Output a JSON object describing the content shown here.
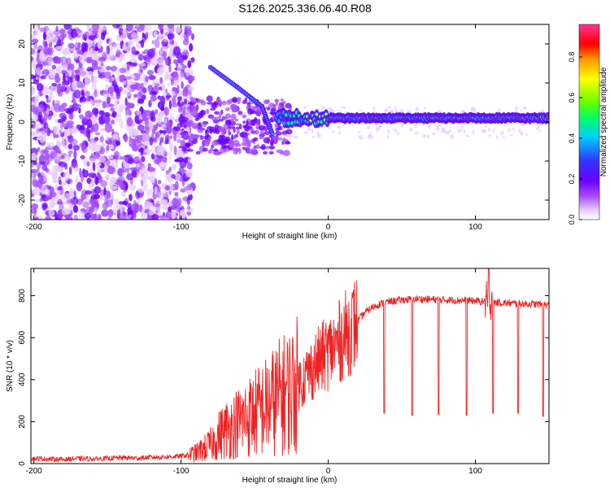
{
  "title": "S126.2025.336.06.40.R08",
  "colors": {
    "snr_line": "#ee2222",
    "colorbar": [
      "#ffffff",
      "#e6ccff",
      "#a64dff",
      "#6a00ff",
      "#3333ff",
      "#00ccff",
      "#00ff66",
      "#66ff00",
      "#ffff00",
      "#ff9900",
      "#ff0000",
      "#ff3399"
    ]
  },
  "chart_data": [
    {
      "type": "heatmap",
      "title": "",
      "xlabel": "Height of straight line (km)",
      "ylabel": "Frequency (Hz)",
      "xlim": [
        -202,
        150
      ],
      "ylim": [
        -25,
        25
      ],
      "x_ticks": [
        "-200",
        "-100",
        "0",
        "100"
      ],
      "x_tick_values": [
        -200,
        -100,
        0,
        100
      ],
      "y_ticks": [
        "-20",
        "-10",
        "0",
        "10",
        "20"
      ],
      "y_tick_values": [
        -20,
        -10,
        0,
        10,
        20
      ],
      "colorbar": {
        "label": "Normalized spectral amplitude",
        "ticks": [
          "0.0",
          "0.2",
          "0.4",
          "0.6",
          "0.8"
        ],
        "tick_values": [
          0.0,
          0.2,
          0.4,
          0.6,
          0.8
        ],
        "range": [
          0,
          0.96
        ]
      },
      "features": {
        "noise_region_x": [
          -202,
          -92
        ],
        "main_trace_y_hz": 1,
        "main_trace_x": [
          -30,
          150
        ],
        "descending_track": [
          [
            -80,
            14
          ],
          [
            -62,
            9
          ],
          [
            -45,
            4
          ],
          [
            -38,
            -3
          ]
        ]
      }
    },
    {
      "type": "line",
      "title": "",
      "xlabel": "Height of straight line (km)",
      "ylabel": "SNR (10 * v/v)",
      "xlim": [
        -202,
        150
      ],
      "ylim": [
        0,
        930
      ],
      "x_ticks": [
        "-200",
        "-100",
        "0",
        "100"
      ],
      "x_tick_values": [
        -200,
        -100,
        0,
        100
      ],
      "y_ticks": [
        "0",
        "200",
        "400",
        "600",
        "800"
      ],
      "y_tick_values": [
        0,
        200,
        400,
        600,
        800
      ],
      "series": [
        {
          "x": [
            -202,
            -190,
            -180,
            -170,
            -160,
            -150,
            -140,
            -130,
            -120,
            -110,
            -100,
            -90,
            -85,
            -80,
            -75,
            -70,
            -65,
            -60,
            -55,
            -50,
            -45,
            -40,
            -35,
            -30,
            -25,
            -20,
            -15,
            -10,
            -5,
            0,
            5,
            10,
            15,
            20,
            25,
            30,
            35,
            40,
            45,
            50,
            55,
            60,
            70,
            80,
            90,
            100,
            110,
            120,
            130,
            140,
            150
          ],
          "values": [
            25,
            22,
            20,
            24,
            22,
            25,
            28,
            26,
            30,
            32,
            35,
            50,
            70,
            90,
            130,
            160,
            180,
            200,
            220,
            240,
            260,
            280,
            310,
            330,
            350,
            380,
            420,
            460,
            500,
            530,
            560,
            600,
            640,
            680,
            720,
            745,
            760,
            770,
            775,
            780,
            782,
            785,
            782,
            780,
            778,
            775,
            770,
            765,
            762,
            760,
            755
          ],
          "dropouts": [
            {
              "x": 38,
              "min": 240
            },
            {
              "x": 57,
              "min": 230
            },
            {
              "x": 75,
              "min": 235
            },
            {
              "x": 94,
              "min": 230
            },
            {
              "x": 112,
              "min": 240
            },
            {
              "x": 129,
              "min": 240
            },
            {
              "x": 146,
              "min": 225
            }
          ],
          "spike": {
            "x": 109,
            "max": 930
          }
        }
      ]
    }
  ]
}
